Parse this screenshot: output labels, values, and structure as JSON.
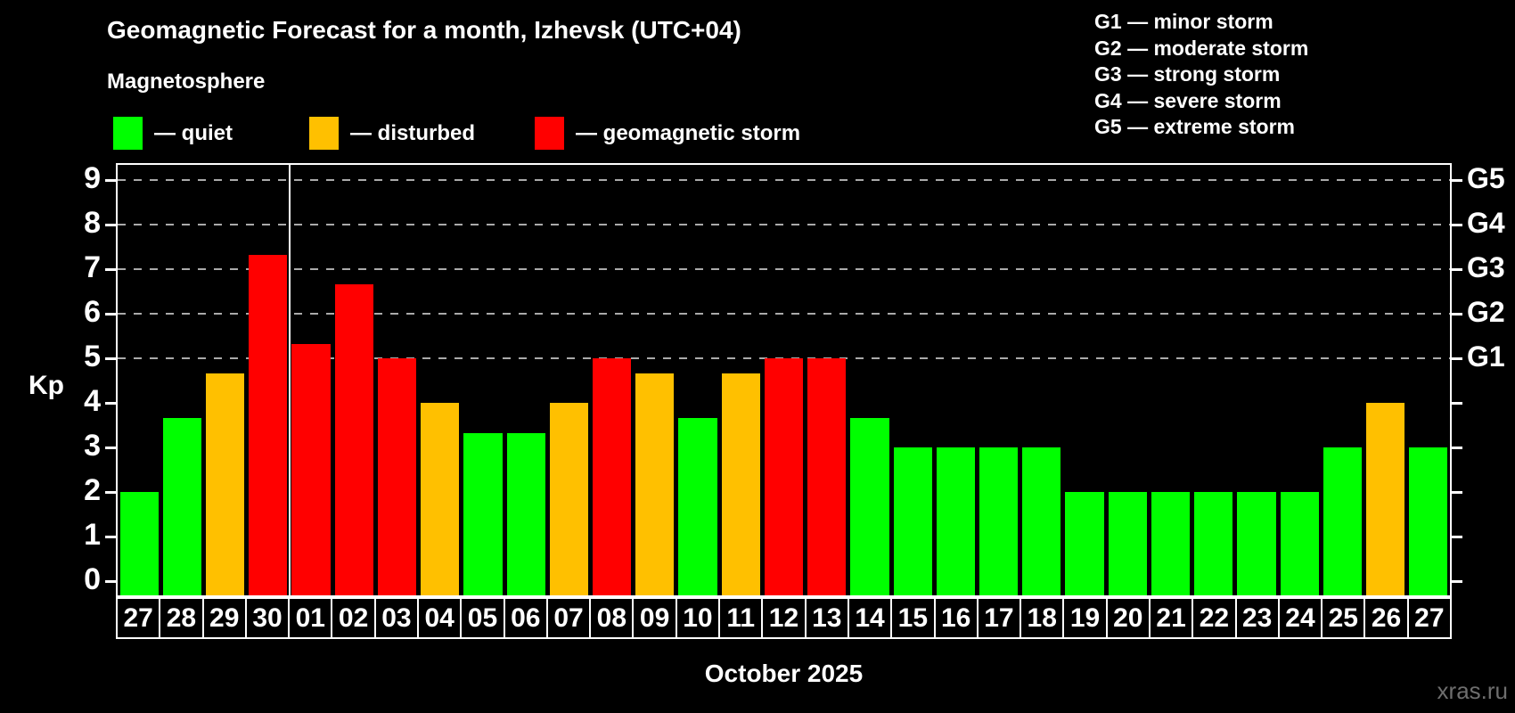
{
  "header": {
    "title": "Geomagnetic Forecast for a month, Izhevsk (UTC+04)",
    "subtitle": "Magnetosphere"
  },
  "legend": {
    "items": [
      {
        "status": "quiet",
        "label": "— quiet",
        "color": "#00ff00"
      },
      {
        "status": "disturbed",
        "label": "— disturbed",
        "color": "#ffc000"
      },
      {
        "status": "storm",
        "label": "— geomagnetic storm",
        "color": "#ff0000"
      }
    ]
  },
  "g_scale": {
    "items": [
      "G1 — minor storm",
      "G2 — moderate storm",
      "G3 — strong storm",
      "G4 — severe storm",
      "G5 — extreme storm"
    ]
  },
  "colors": {
    "background": "#000000",
    "axis": "#ffffff",
    "grid": "#aaaaaa",
    "quiet": "#00ff00",
    "disturbed": "#ffc000",
    "storm": "#ff0000",
    "watermark": "#6e6e6e"
  },
  "chart_data": {
    "type": "bar",
    "ylabel": "Kp",
    "xlabel": "October 2025",
    "ylim": [
      0,
      9
    ],
    "yticks": [
      0,
      1,
      2,
      3,
      4,
      5,
      6,
      7,
      8,
      9
    ],
    "dashed_gridlines_at_kp": [
      5,
      6,
      7,
      8,
      9
    ],
    "right_axis": [
      {
        "label": "G1",
        "kp": 5
      },
      {
        "label": "G2",
        "kp": 6
      },
      {
        "label": "G3",
        "kp": 7
      },
      {
        "label": "G4",
        "kp": 8
      },
      {
        "label": "G5",
        "kp": 9
      }
    ],
    "month_separator_after_index": 3,
    "days": [
      {
        "label": "27",
        "kp": 2,
        "status": "quiet"
      },
      {
        "label": "28",
        "kp": 3.67,
        "status": "quiet"
      },
      {
        "label": "29",
        "kp": 4.67,
        "status": "disturbed"
      },
      {
        "label": "30",
        "kp": 7.33,
        "status": "storm"
      },
      {
        "label": "01",
        "kp": 5.33,
        "status": "storm"
      },
      {
        "label": "02",
        "kp": 6.67,
        "status": "storm"
      },
      {
        "label": "03",
        "kp": 5,
        "status": "storm"
      },
      {
        "label": "04",
        "kp": 4,
        "status": "disturbed"
      },
      {
        "label": "05",
        "kp": 3.33,
        "status": "quiet"
      },
      {
        "label": "06",
        "kp": 3.33,
        "status": "quiet"
      },
      {
        "label": "07",
        "kp": 4,
        "status": "disturbed"
      },
      {
        "label": "08",
        "kp": 5,
        "status": "storm"
      },
      {
        "label": "09",
        "kp": 4.67,
        "status": "disturbed"
      },
      {
        "label": "10",
        "kp": 3.67,
        "status": "quiet"
      },
      {
        "label": "11",
        "kp": 4.67,
        "status": "disturbed"
      },
      {
        "label": "12",
        "kp": 5,
        "status": "storm"
      },
      {
        "label": "13",
        "kp": 5,
        "status": "storm"
      },
      {
        "label": "14",
        "kp": 3.67,
        "status": "quiet"
      },
      {
        "label": "15",
        "kp": 3,
        "status": "quiet"
      },
      {
        "label": "16",
        "kp": 3,
        "status": "quiet"
      },
      {
        "label": "17",
        "kp": 3,
        "status": "quiet"
      },
      {
        "label": "18",
        "kp": 3,
        "status": "quiet"
      },
      {
        "label": "19",
        "kp": 2,
        "status": "quiet"
      },
      {
        "label": "20",
        "kp": 2,
        "status": "quiet"
      },
      {
        "label": "21",
        "kp": 2,
        "status": "quiet"
      },
      {
        "label": "22",
        "kp": 2,
        "status": "quiet"
      },
      {
        "label": "23",
        "kp": 2,
        "status": "quiet"
      },
      {
        "label": "24",
        "kp": 2,
        "status": "quiet"
      },
      {
        "label": "25",
        "kp": 3,
        "status": "quiet"
      },
      {
        "label": "26",
        "kp": 4,
        "status": "disturbed"
      },
      {
        "label": "27",
        "kp": 3,
        "status": "quiet"
      }
    ]
  },
  "footer": {
    "watermark": "xras.ru"
  }
}
